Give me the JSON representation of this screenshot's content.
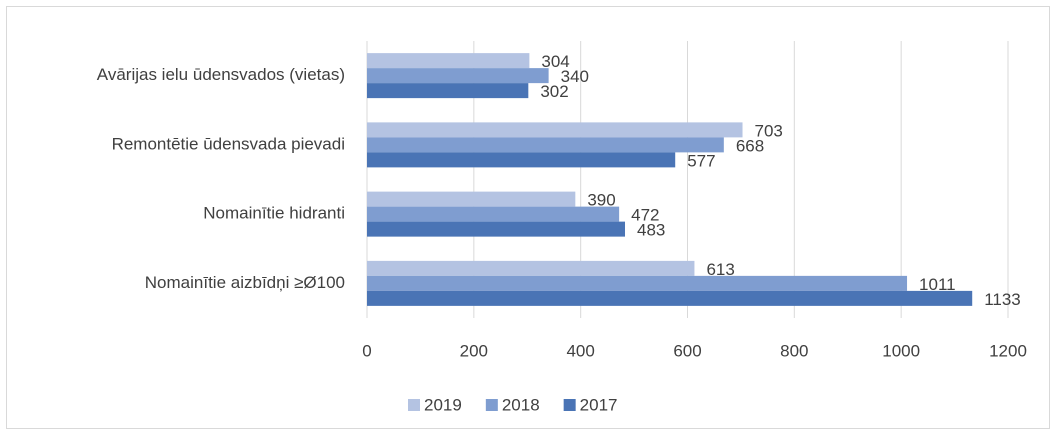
{
  "chart_data": {
    "type": "bar",
    "orientation": "horizontal",
    "categories": [
      "Avārijas ielu ūdensvados (vietas)",
      "Remontētie ūdensvada pievadi",
      "Nomainītie hidranti",
      "Nomainītie aizbīdņi ≥Ø100"
    ],
    "series": [
      {
        "name": "2019",
        "color": "#b4c3e2",
        "values": [
          304,
          703,
          390,
          613
        ]
      },
      {
        "name": "2018",
        "color": "#7f9dd0",
        "values": [
          340,
          668,
          472,
          1011
        ]
      },
      {
        "name": "2017",
        "color": "#4a74b5",
        "values": [
          302,
          577,
          483,
          1133
        ]
      }
    ],
    "xlim": [
      0,
      1200
    ],
    "xticks": [
      0,
      200,
      400,
      600,
      800,
      1000,
      1200
    ],
    "grid": true,
    "legend": "bottom"
  }
}
